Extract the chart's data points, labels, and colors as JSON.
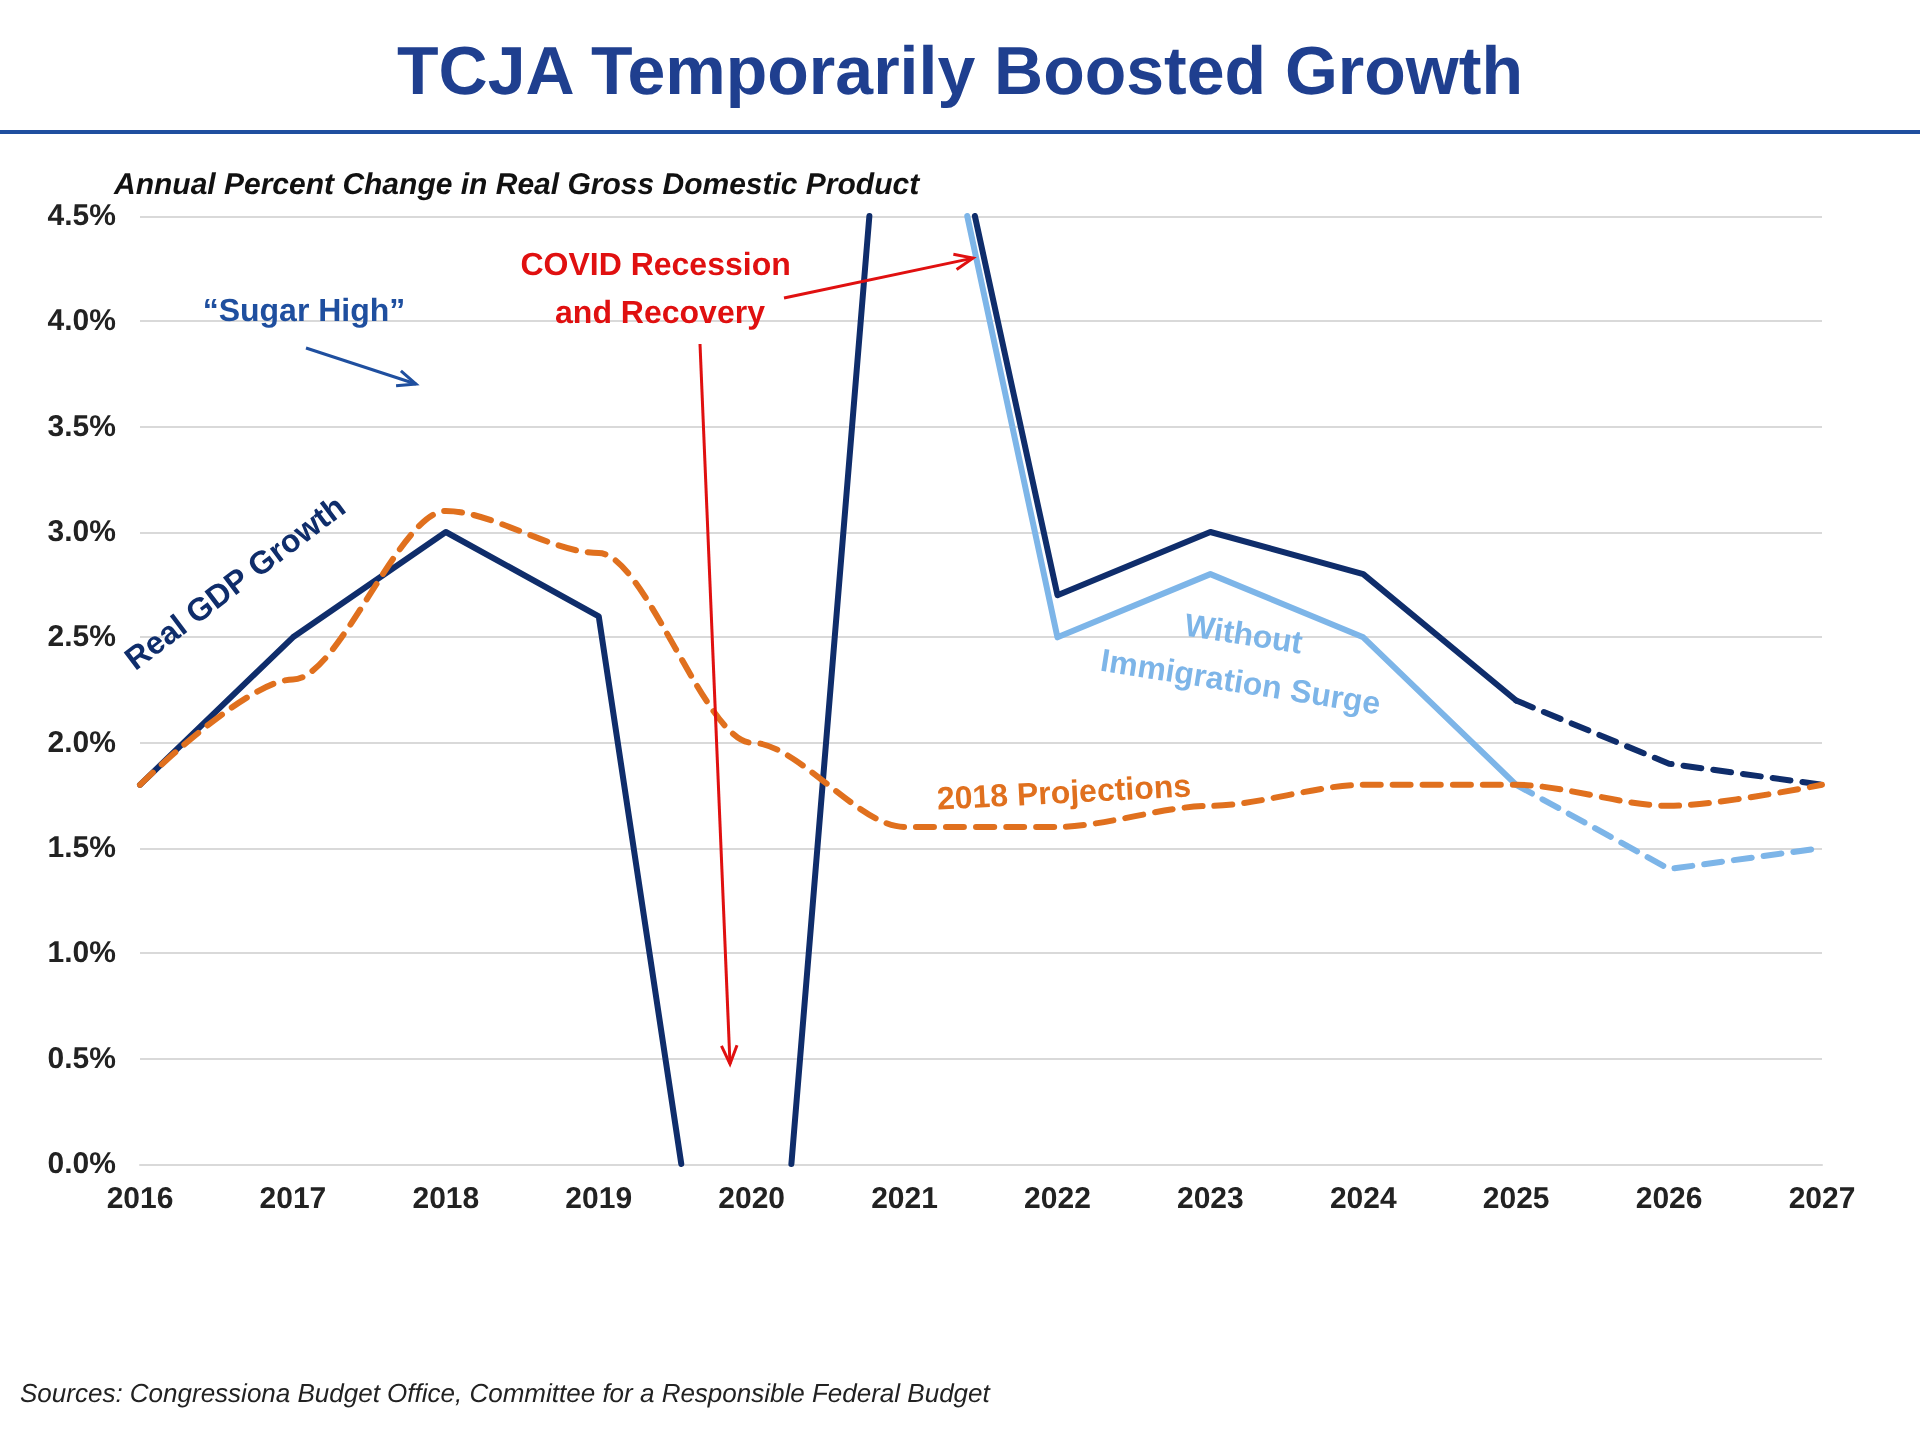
{
  "chart_data": {
    "type": "line",
    "title": "TCJA Temporarily Boosted Growth",
    "subtitle": "Annual Percent Change in Real Gross Domestic Product",
    "xlim": [
      2016,
      2027
    ],
    "xticks": [
      2016,
      2017,
      2018,
      2019,
      2020,
      2021,
      2022,
      2023,
      2024,
      2025,
      2026,
      2027
    ],
    "ylim": [
      0,
      4.5
    ],
    "yticks": [
      {
        "value": 0,
        "label": "0.0%"
      },
      {
        "value": 0.5,
        "label": "0.5%"
      },
      {
        "value": 1,
        "label": "1.0%"
      },
      {
        "value": 1.5,
        "label": "1.5%"
      },
      {
        "value": 2,
        "label": "2.0%"
      },
      {
        "value": 2.5,
        "label": "2.5%"
      },
      {
        "value": 3,
        "label": "3.0%"
      },
      {
        "value": 3.5,
        "label": "3.5%"
      },
      {
        "value": 4,
        "label": "4.0%"
      },
      {
        "value": 4.5,
        "label": "4.5%"
      }
    ],
    "grid": "y",
    "marker": "none",
    "series": [
      {
        "color": "#0f2d6b",
        "line_style": "solid",
        "x": [
          2016,
          2017,
          2018,
          2019,
          2019.54,
          2020,
          2020.26,
          2020.77,
          2021,
          2021.46,
          2022,
          2023,
          2024,
          2025
        ],
        "values": [
          1.8,
          2.5,
          3.0,
          2.6,
          0,
          null,
          0,
          4.5,
          null,
          4.5,
          2.7,
          3.0,
          2.8,
          2.2
        ]
      },
      {
        "color": "#0f2d6b",
        "line_style": "dashed",
        "x": [
          2025,
          2026,
          2027
        ],
        "values": [
          2.2,
          1.9,
          1.8
        ]
      },
      {
        "color": "#7db5e8",
        "line_style": "solid",
        "x": [
          2021.41,
          2022,
          2023,
          2024,
          2025
        ],
        "values": [
          4.5,
          2.5,
          2.8,
          2.5,
          1.8
        ]
      },
      {
        "color": "#7db5e8",
        "line_style": "dashed",
        "x": [
          2025,
          2026,
          2027
        ],
        "values": [
          1.8,
          1.4,
          1.5
        ]
      },
      {
        "color": "#e0701e",
        "line_style": "dashed",
        "x": [
          2016,
          2017,
          2018,
          2019,
          2020,
          2021,
          2022,
          2023,
          2024,
          2025,
          2026,
          2027
        ],
        "values": [
          1.8,
          2.3,
          3.1,
          2.9,
          2.0,
          1.6,
          1.6,
          1.7,
          1.8,
          1.8,
          1.7,
          1.8
        ]
      }
    ],
    "annotations": [
      "Real GDP Growth",
      "Without Immigration Surge",
      "2018 Projections",
      "“Sugar High”",
      {
        "text": "COVID Recession and Recovery",
        "x": 2021.5,
        "y": 4.3
      },
      "Sources: Congressiona Budget Office, Committee for a Responsible Federal Budget"
    ]
  }
}
